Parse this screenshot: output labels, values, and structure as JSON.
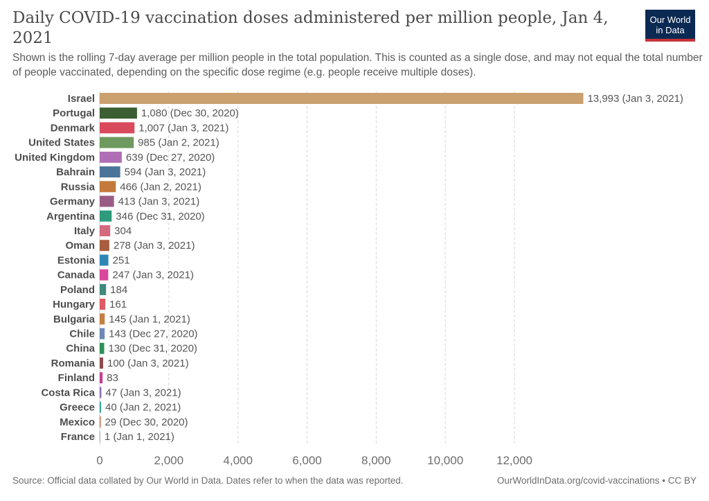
{
  "header": {
    "title": "Daily COVID-19 vaccination doses administered per million people, Jan 4, 2021",
    "subtitle": "Shown is the rolling 7-day average per million people in the total population. This is counted as a single dose, and may not equal the total number of people vaccinated, depending on the specific dose regime (e.g. people receive multiple doses).",
    "logo": "Our World in Data"
  },
  "footer": {
    "source": "Source: Official data collated by Our World in Data. Dates refer to when the data was reported.",
    "link": "OurWorldInData.org/covid-vaccinations • CC BY"
  },
  "chart_data": {
    "type": "bar",
    "orientation": "horizontal",
    "xlim": [
      0,
      14000
    ],
    "xticks": [
      0,
      2000,
      4000,
      6000,
      8000,
      10000,
      12000
    ],
    "xtick_labels": [
      "0",
      "2,000",
      "4,000",
      "6,000",
      "8,000",
      "10,000",
      "12,000"
    ],
    "grid": true,
    "categories": [
      "Israel",
      "Portugal",
      "Denmark",
      "United States",
      "United Kingdom",
      "Bahrain",
      "Russia",
      "Germany",
      "Argentina",
      "Italy",
      "Oman",
      "Estonia",
      "Canada",
      "Poland",
      "Hungary",
      "Bulgaria",
      "Chile",
      "China",
      "Romania",
      "Finland",
      "Costa Rica",
      "Greece",
      "Mexico",
      "France"
    ],
    "values": [
      13993,
      1080,
      1007,
      985,
      639,
      594,
      466,
      413,
      346,
      304,
      278,
      251,
      247,
      184,
      161,
      145,
      143,
      130,
      100,
      83,
      47,
      40,
      29,
      1
    ],
    "labels": [
      "13,993 (Jan 3, 2021)",
      "1,080 (Dec 30, 2020)",
      "1,007 (Jan 3, 2021)",
      "985 (Jan 2, 2021)",
      "639 (Dec 27, 2020)",
      "594 (Jan 3, 2021)",
      "466 (Jan 2, 2021)",
      "413 (Jan 3, 2021)",
      "346 (Dec 31, 2020)",
      "304",
      "278 (Jan 3, 2021)",
      "251",
      "247 (Jan 3, 2021)",
      "184",
      "161",
      "145 (Jan 1, 2021)",
      "143 (Dec 27, 2020)",
      "130 (Dec 31, 2020)",
      "100 (Jan 3, 2021)",
      "83",
      "47 (Jan 3, 2021)",
      "40 (Jan 2, 2021)",
      "29 (Dec 30, 2020)",
      "1 (Jan 1, 2021)"
    ],
    "colors": [
      "#c9a06e",
      "#3b5e32",
      "#d94a5c",
      "#6f9a5f",
      "#b06eb6",
      "#4c7399",
      "#c47a3a",
      "#9a5c84",
      "#2e9a7e",
      "#d36a7e",
      "#a85e3f",
      "#2f86b5",
      "#d9479b",
      "#3f8a7c",
      "#de5a64",
      "#c57f3f",
      "#6c88b8",
      "#2f8f5a",
      "#8f4a4d",
      "#c23f8e",
      "#8a6ab1",
      "#35a39b",
      "#c86a4a",
      "#b0b0b0"
    ]
  }
}
